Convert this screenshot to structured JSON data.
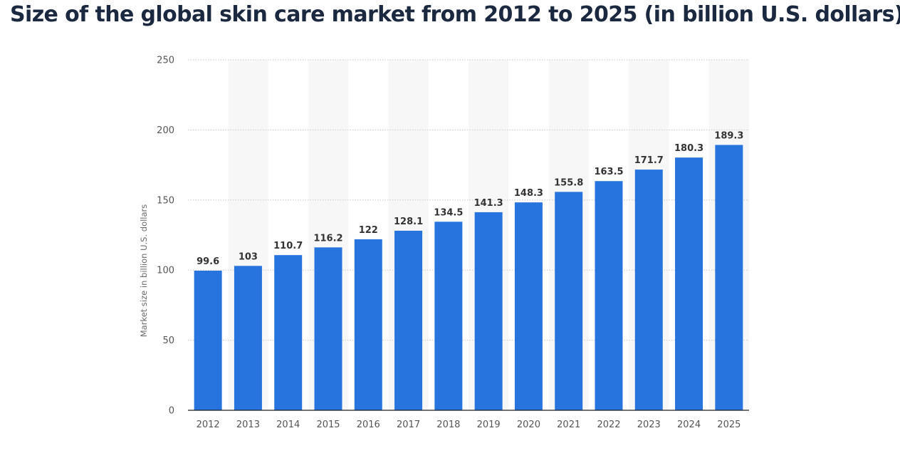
{
  "header": {
    "title": "Size of the global skin care market from 2012 to 2025 (in billion U.S. dollars)*"
  },
  "colors": {
    "bar": "#2874df",
    "band": "#f7f7f7",
    "grid": "#c8c8c8",
    "axis": "#222222",
    "tick_text": "#555555",
    "label_text": "#333333"
  },
  "chart_data": {
    "type": "bar",
    "title": "Size of the global skin care market from 2012 to 2025 (in billion U.S. dollars)*",
    "xlabel": "",
    "ylabel": "Market size in billion U.S. dollars",
    "ylim": [
      0,
      250
    ],
    "yticks": [
      0,
      50,
      100,
      150,
      200,
      250
    ],
    "grid": true,
    "categories": [
      "2012",
      "2013",
      "2014",
      "2015",
      "2016",
      "2017",
      "2018",
      "2019",
      "2020",
      "2021",
      "2022",
      "2023",
      "2024",
      "2025"
    ],
    "values": [
      99.6,
      103,
      110.7,
      116.2,
      122,
      128.1,
      134.5,
      141.3,
      148.3,
      155.8,
      163.5,
      171.7,
      180.3,
      189.3
    ],
    "value_labels": [
      "99.6",
      "103",
      "110.7",
      "116.2",
      "122",
      "128.1",
      "134.5",
      "141.3",
      "148.3",
      "155.8",
      "163.5",
      "171.7",
      "180.3",
      "189.3"
    ]
  }
}
